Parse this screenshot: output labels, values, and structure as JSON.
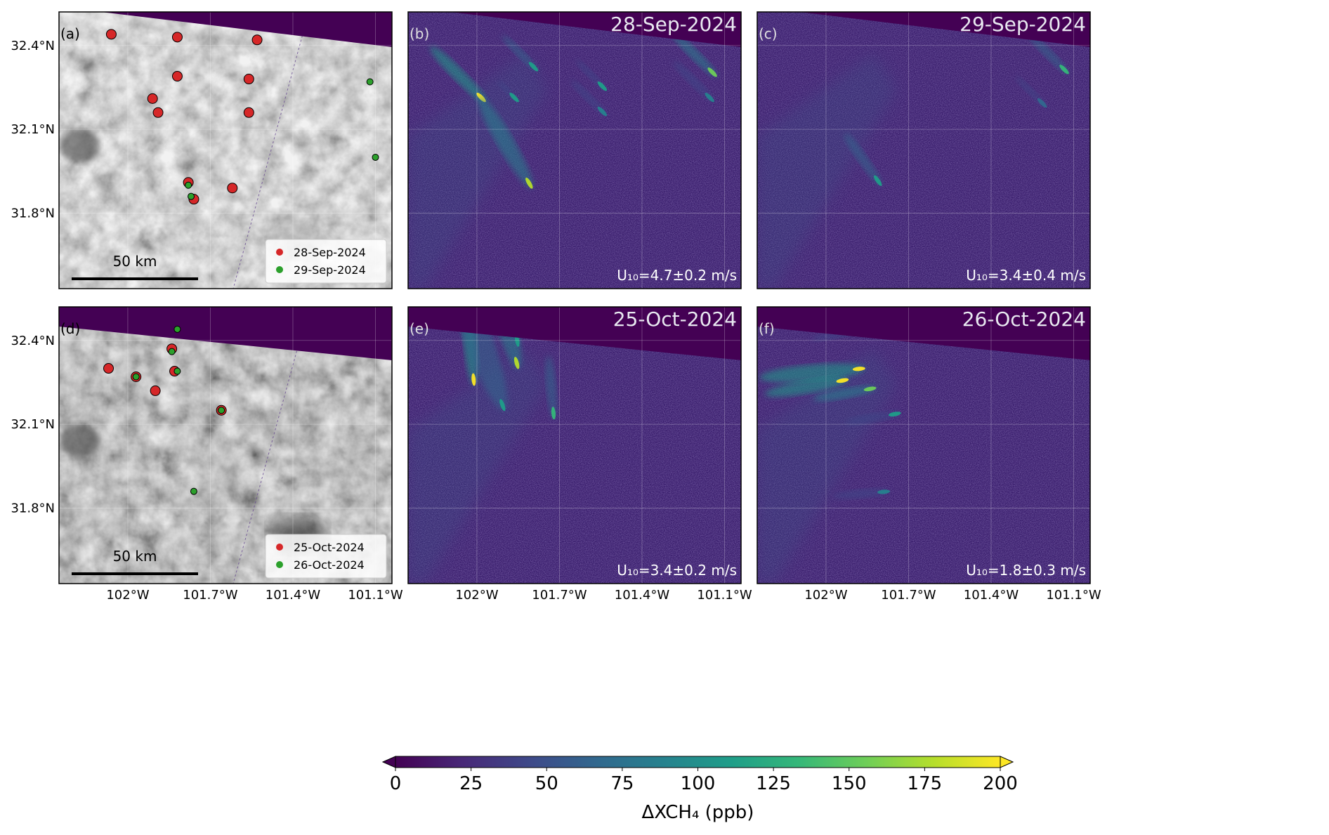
{
  "figure": {
    "lat_ticks": [
      "32.4°N",
      "32.1°N",
      "31.8°N"
    ],
    "lon_ticks": [
      "102°W",
      "101.7°W",
      "101.4°W",
      "101.1°W"
    ],
    "scalebar_label": "50 km"
  },
  "panels": [
    {
      "id": "a",
      "label": "(a)",
      "kind": "imagery",
      "legend": [
        {
          "label": "28-Sep-2024",
          "color": "#d62728"
        },
        {
          "label": "29-Sep-2024",
          "color": "#2ca02c"
        }
      ],
      "sources": [
        {
          "set": 0,
          "lon": -102.06,
          "lat": 32.44
        },
        {
          "set": 0,
          "lon": -101.82,
          "lat": 32.43
        },
        {
          "set": 0,
          "lon": -101.53,
          "lat": 32.42
        },
        {
          "set": 0,
          "lon": -101.82,
          "lat": 32.29
        },
        {
          "set": 0,
          "lon": -101.56,
          "lat": 32.28
        },
        {
          "set": 0,
          "lon": -101.91,
          "lat": 32.21
        },
        {
          "set": 0,
          "lon": -101.89,
          "lat": 32.16
        },
        {
          "set": 0,
          "lon": -101.56,
          "lat": 32.16
        },
        {
          "set": 0,
          "lon": -101.78,
          "lat": 31.91
        },
        {
          "set": 0,
          "lon": -101.76,
          "lat": 31.85
        },
        {
          "set": 0,
          "lon": -101.62,
          "lat": 31.89
        },
        {
          "set": 1,
          "lon": -101.12,
          "lat": 32.27
        },
        {
          "set": 1,
          "lon": -101.1,
          "lat": 32.0
        },
        {
          "set": 1,
          "lon": -101.78,
          "lat": 31.9
        },
        {
          "set": 1,
          "lon": -101.77,
          "lat": 31.86
        }
      ]
    },
    {
      "id": "b",
      "label": "(b)",
      "kind": "methane",
      "date": "28-Sep-2024",
      "wind": "U₁₀=4.7±0.2 m/s"
    },
    {
      "id": "c",
      "label": "(c)",
      "kind": "methane",
      "date": "29-Sep-2024",
      "wind": "U₁₀=3.4±0.4 m/s"
    },
    {
      "id": "d",
      "label": "(d)",
      "kind": "imagery",
      "legend": [
        {
          "label": "25-Oct-2024",
          "color": "#d62728"
        },
        {
          "label": "26-Oct-2024",
          "color": "#2ca02c"
        }
      ],
      "sources": [
        {
          "set": 0,
          "lon": -102.07,
          "lat": 32.3
        },
        {
          "set": 0,
          "lon": -101.97,
          "lat": 32.27
        },
        {
          "set": 0,
          "lon": -101.9,
          "lat": 32.22
        },
        {
          "set": 0,
          "lon": -101.84,
          "lat": 32.37
        },
        {
          "set": 0,
          "lon": -101.83,
          "lat": 32.29
        },
        {
          "set": 0,
          "lon": -101.66,
          "lat": 32.15
        },
        {
          "set": 1,
          "lon": -101.82,
          "lat": 32.44
        },
        {
          "set": 1,
          "lon": -101.97,
          "lat": 32.27
        },
        {
          "set": 1,
          "lon": -101.84,
          "lat": 32.36
        },
        {
          "set": 1,
          "lon": -101.82,
          "lat": 32.29
        },
        {
          "set": 1,
          "lon": -101.66,
          "lat": 32.15
        },
        {
          "set": 1,
          "lon": -101.76,
          "lat": 31.86
        }
      ]
    },
    {
      "id": "e",
      "label": "(e)",
      "kind": "methane",
      "date": "25-Oct-2024",
      "wind": "U₁₀=3.4±0.2 m/s"
    },
    {
      "id": "f",
      "label": "(f)",
      "kind": "methane",
      "date": "26-Oct-2024",
      "wind": "U₁₀=1.8±0.3 m/s"
    }
  ],
  "colorbar": {
    "label": "ΔXCH₄ (ppb)",
    "min": 0,
    "max": 200,
    "ticks": [
      "0",
      "25",
      "50",
      "75",
      "100",
      "125",
      "150",
      "175",
      "200"
    ],
    "colors": [
      "#440154",
      "#482878",
      "#3e4989",
      "#31688e",
      "#26828e",
      "#1f9e89",
      "#35b779",
      "#6ece58",
      "#b5de2b",
      "#fde725"
    ]
  }
}
